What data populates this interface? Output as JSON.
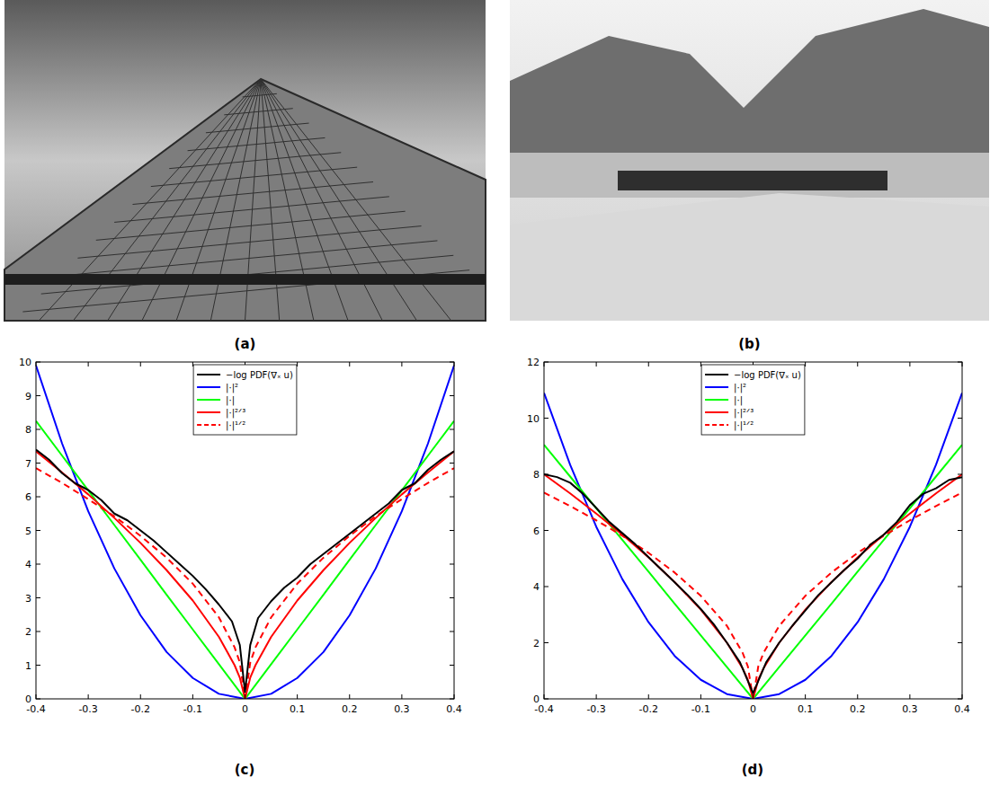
{
  "photos": [
    {
      "caption": "(a)"
    },
    {
      "caption": "(b)"
    }
  ],
  "chart_data": [
    {
      "type": "line",
      "caption": "(c)",
      "legend": "top",
      "xlim": [
        -0.4,
        0.4
      ],
      "ylim": [
        0,
        10
      ],
      "xticks": [
        -0.4,
        -0.3,
        -0.2,
        -0.1,
        0,
        0.1,
        0.2,
        0.3,
        0.4
      ],
      "yticks": [
        0,
        1,
        2,
        3,
        4,
        5,
        6,
        7,
        8,
        9,
        10
      ],
      "series": [
        {
          "name": "−log PDF(∇ₓ u)",
          "color": "#000000",
          "line_style": "solid",
          "x": [
            -0.4,
            -0.375,
            -0.35,
            -0.325,
            -0.3,
            -0.275,
            -0.25,
            -0.225,
            -0.2,
            -0.175,
            -0.15,
            -0.125,
            -0.1,
            -0.075,
            -0.05,
            -0.025,
            -0.01,
            0,
            0.01,
            0.025,
            0.05,
            0.075,
            0.1,
            0.125,
            0.15,
            0.175,
            0.2,
            0.225,
            0.25,
            0.275,
            0.3,
            0.325,
            0.35,
            0.375,
            0.4
          ],
          "values": [
            7.4,
            7.1,
            6.7,
            6.4,
            6.2,
            5.9,
            5.5,
            5.3,
            5.0,
            4.7,
            4.35,
            4.0,
            3.65,
            3.25,
            2.8,
            2.3,
            1.6,
            0.2,
            1.6,
            2.4,
            2.9,
            3.3,
            3.6,
            4.0,
            4.3,
            4.6,
            4.9,
            5.2,
            5.5,
            5.8,
            6.2,
            6.4,
            6.8,
            7.1,
            7.35
          ]
        },
        {
          "name": "|·|²",
          "color": "#0000ff",
          "line_style": "solid",
          "x": [
            -0.4,
            -0.35,
            -0.3,
            -0.25,
            -0.2,
            -0.15,
            -0.1,
            -0.05,
            0,
            0.05,
            0.1,
            0.15,
            0.2,
            0.25,
            0.3,
            0.35,
            0.4
          ],
          "values": [
            9.9,
            7.58,
            5.57,
            3.87,
            2.48,
            1.39,
            0.62,
            0.15,
            0,
            0.15,
            0.62,
            1.39,
            2.48,
            3.87,
            5.57,
            7.58,
            9.9
          ]
        },
        {
          "name": "|·|",
          "color": "#00ff00",
          "line_style": "solid",
          "x": [
            -0.4,
            -0.35,
            -0.3,
            -0.25,
            -0.2,
            -0.15,
            -0.1,
            -0.05,
            0,
            0.05,
            0.1,
            0.15,
            0.2,
            0.25,
            0.3,
            0.35,
            0.4
          ],
          "values": [
            8.25,
            7.22,
            6.19,
            5.16,
            4.13,
            3.09,
            2.06,
            1.03,
            0,
            1.03,
            2.06,
            3.09,
            4.13,
            5.16,
            6.19,
            7.22,
            8.25
          ]
        },
        {
          "name": "|·|²ᐟ³",
          "color": "#ff0000",
          "line_style": "solid",
          "x": [
            -0.4,
            -0.35,
            -0.3,
            -0.25,
            -0.2,
            -0.15,
            -0.1,
            -0.05,
            -0.02,
            -0.01,
            0,
            0.01,
            0.02,
            0.05,
            0.1,
            0.15,
            0.2,
            0.25,
            0.3,
            0.35,
            0.4
          ],
          "values": [
            7.35,
            6.72,
            6.07,
            5.37,
            4.63,
            3.82,
            2.92,
            1.84,
            1.0,
            0.63,
            0,
            0.63,
            1.0,
            1.84,
            2.92,
            3.82,
            4.63,
            5.37,
            6.07,
            6.72,
            7.35
          ]
        },
        {
          "name": "|·|¹ᐟ²",
          "color": "#ff0000",
          "line_style": "dashed",
          "x": [
            -0.4,
            -0.35,
            -0.3,
            -0.25,
            -0.2,
            -0.15,
            -0.1,
            -0.05,
            -0.02,
            -0.01,
            0,
            0.01,
            0.02,
            0.05,
            0.1,
            0.15,
            0.2,
            0.25,
            0.3,
            0.35,
            0.4
          ],
          "values": [
            6.85,
            6.41,
            5.93,
            5.42,
            4.84,
            4.19,
            3.42,
            2.42,
            1.53,
            1.08,
            0,
            1.08,
            1.53,
            2.42,
            3.42,
            4.19,
            4.84,
            5.42,
            5.93,
            6.41,
            6.85
          ]
        }
      ]
    },
    {
      "type": "line",
      "caption": "(d)",
      "legend": "top",
      "xlim": [
        -0.4,
        0.4
      ],
      "ylim": [
        0,
        12
      ],
      "xticks": [
        -0.4,
        -0.3,
        -0.2,
        -0.1,
        0,
        0.1,
        0.2,
        0.3,
        0.4
      ],
      "yticks": [
        0,
        2,
        4,
        6,
        8,
        10,
        12
      ],
      "series": [
        {
          "name": "−log PDF(∇ₓ u)",
          "color": "#000000",
          "line_style": "solid",
          "x": [
            -0.4,
            -0.375,
            -0.35,
            -0.325,
            -0.3,
            -0.275,
            -0.25,
            -0.225,
            -0.2,
            -0.175,
            -0.15,
            -0.125,
            -0.1,
            -0.075,
            -0.05,
            -0.025,
            0,
            0.025,
            0.05,
            0.075,
            0.1,
            0.125,
            0.15,
            0.175,
            0.2,
            0.225,
            0.25,
            0.275,
            0.3,
            0.325,
            0.35,
            0.375,
            0.4
          ],
          "values": [
            8.0,
            7.9,
            7.7,
            7.3,
            6.8,
            6.3,
            5.9,
            5.5,
            5.05,
            4.6,
            4.15,
            3.7,
            3.2,
            2.65,
            2.0,
            1.3,
            0.2,
            1.3,
            2.0,
            2.6,
            3.15,
            3.7,
            4.15,
            4.6,
            5.0,
            5.5,
            5.85,
            6.3,
            6.9,
            7.3,
            7.5,
            7.8,
            7.9
          ]
        },
        {
          "name": "|·|²",
          "color": "#0000ff",
          "line_style": "solid",
          "x": [
            -0.4,
            -0.35,
            -0.3,
            -0.25,
            -0.2,
            -0.15,
            -0.1,
            -0.05,
            0,
            0.05,
            0.1,
            0.15,
            0.2,
            0.25,
            0.3,
            0.35,
            0.4
          ],
          "values": [
            10.9,
            8.34,
            6.13,
            4.26,
            2.73,
            1.53,
            0.68,
            0.17,
            0,
            0.17,
            0.68,
            1.53,
            2.73,
            4.26,
            6.13,
            8.34,
            10.9
          ]
        },
        {
          "name": "|·|",
          "color": "#00ff00",
          "line_style": "solid",
          "x": [
            -0.4,
            -0.35,
            -0.3,
            -0.25,
            -0.2,
            -0.15,
            -0.1,
            -0.05,
            0,
            0.05,
            0.1,
            0.15,
            0.2,
            0.25,
            0.3,
            0.35,
            0.4
          ],
          "values": [
            9.05,
            7.92,
            6.79,
            5.66,
            4.53,
            3.39,
            2.26,
            1.13,
            0,
            1.13,
            2.26,
            3.39,
            4.53,
            5.66,
            6.79,
            7.92,
            9.05
          ]
        },
        {
          "name": "|·|²ᐟ³",
          "color": "#ff0000",
          "line_style": "solid",
          "x": [
            -0.4,
            -0.35,
            -0.3,
            -0.25,
            -0.2,
            -0.15,
            -0.1,
            -0.05,
            -0.02,
            -0.01,
            0,
            0.01,
            0.02,
            0.05,
            0.1,
            0.15,
            0.2,
            0.25,
            0.3,
            0.35,
            0.4
          ],
          "values": [
            8.0,
            7.32,
            6.6,
            5.85,
            5.04,
            4.16,
            3.18,
            2.0,
            1.09,
            0.68,
            0,
            0.68,
            1.09,
            2.0,
            3.18,
            4.16,
            5.04,
            5.85,
            6.6,
            7.32,
            8.0
          ]
        },
        {
          "name": "|·|¹ᐟ²",
          "color": "#ff0000",
          "line_style": "dashed",
          "x": [
            -0.4,
            -0.35,
            -0.3,
            -0.25,
            -0.2,
            -0.15,
            -0.1,
            -0.05,
            -0.02,
            -0.01,
            0,
            0.01,
            0.02,
            0.05,
            0.1,
            0.15,
            0.2,
            0.25,
            0.3,
            0.35,
            0.4
          ],
          "values": [
            7.35,
            6.87,
            6.36,
            5.81,
            5.2,
            4.5,
            3.67,
            2.6,
            1.64,
            1.16,
            0,
            1.16,
            1.64,
            2.6,
            3.67,
            4.5,
            5.2,
            5.81,
            6.36,
            6.87,
            7.35
          ]
        }
      ]
    }
  ]
}
